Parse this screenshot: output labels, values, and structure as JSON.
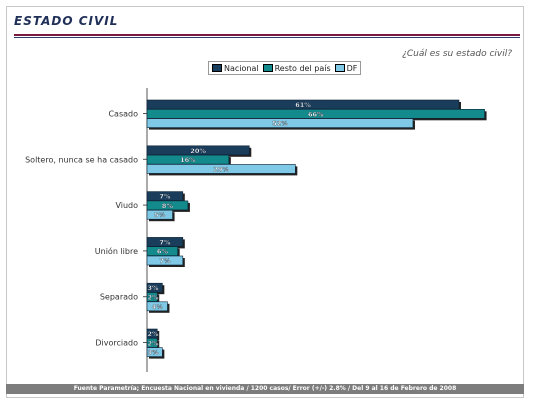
{
  "header": {
    "title": "ESTADO CIVIL",
    "question": "¿Cuál es su estado civil?"
  },
  "footer": {
    "source": "Fuente Parametría; Encuesta Nacional en vivienda / 1200 casos/ Error (+/-) 2.8% / Del 9 al 16 de Febrero de 2008"
  },
  "colors": {
    "nacional": "#1a3d5c",
    "resto": "#138a8c",
    "df": "#7fc9e6",
    "axis": "#555555",
    "title_rule": "#7a1a3e"
  },
  "chart_data": {
    "type": "bar",
    "orientation": "horizontal",
    "title": "",
    "xlabel": "",
    "ylabel": "",
    "xlim": [
      0,
      70
    ],
    "grid": false,
    "legend_position": "top",
    "categories": [
      "Casado",
      "Soltero, nunca se ha casado",
      "Viudo",
      "Unión libre",
      "Separado",
      "Divorciado"
    ],
    "series": [
      {
        "name": "Nacional",
        "values": [
          61,
          20,
          7,
          7,
          3,
          2
        ],
        "labels": [
          "61%",
          "20%",
          "7%",
          "7%",
          "3%",
          "2%"
        ]
      },
      {
        "name": "Resto del país",
        "values": [
          66,
          16,
          8,
          6,
          2,
          2
        ],
        "labels": [
          "66%",
          "16%",
          "8%",
          "6%",
          "2%",
          "2%"
        ]
      },
      {
        "name": "DF",
        "values": [
          52,
          29,
          5,
          7,
          4,
          3
        ],
        "labels": [
          "52%",
          "29%",
          "5%",
          "7%",
          "4%",
          "3%"
        ]
      }
    ]
  }
}
